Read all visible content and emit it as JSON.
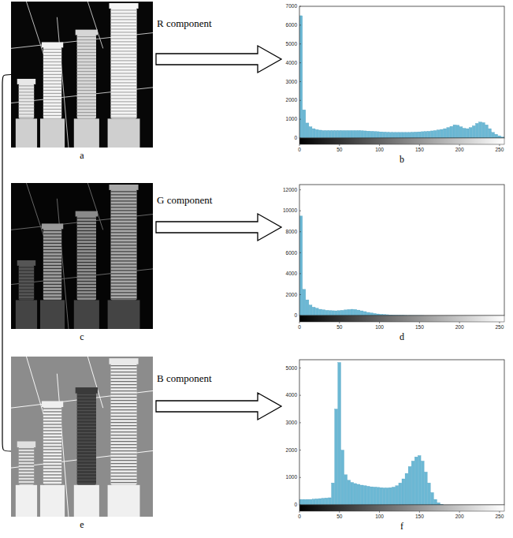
{
  "chart_data": [
    {
      "type": "histogram",
      "title": "R component",
      "annotations": [
        "b"
      ],
      "color": "#6cb8d4",
      "bins": [
        0,
        4,
        8,
        12,
        16,
        20,
        24,
        28,
        32,
        36,
        40,
        44,
        48,
        52,
        56,
        60,
        64,
        68,
        72,
        76,
        80,
        84,
        88,
        92,
        96,
        100,
        104,
        108,
        112,
        116,
        120,
        124,
        128,
        132,
        136,
        140,
        144,
        148,
        152,
        156,
        160,
        164,
        168,
        172,
        176,
        180,
        184,
        188,
        192,
        196,
        200,
        204,
        208,
        212,
        216,
        220,
        224,
        228,
        232,
        236,
        240,
        244,
        248,
        252,
        256
      ],
      "values": [
        6500,
        1500,
        800,
        600,
        500,
        450,
        420,
        400,
        400,
        400,
        400,
        400,
        400,
        400,
        400,
        400,
        400,
        400,
        400,
        390,
        380,
        370,
        360,
        350,
        340,
        330,
        320,
        310,
        300,
        300,
        300,
        300,
        300,
        300,
        300,
        310,
        320,
        330,
        340,
        350,
        360,
        380,
        400,
        430,
        460,
        500,
        560,
        620,
        700,
        680,
        600,
        520,
        500,
        560,
        650,
        780,
        850,
        820,
        700,
        500,
        300,
        200,
        120,
        60
      ],
      "xlim": [
        0,
        256
      ],
      "xticks": [
        0,
        50,
        100,
        150,
        200,
        250
      ],
      "ylim": [
        0,
        7000
      ],
      "yticks": [
        0,
        1000,
        2000,
        3000,
        4000,
        5000,
        6000,
        7000
      ]
    },
    {
      "type": "histogram",
      "title": "G component",
      "annotations": [
        "d"
      ],
      "color": "#6cb8d4",
      "bins": [
        0,
        4,
        8,
        12,
        16,
        20,
        24,
        28,
        32,
        36,
        40,
        44,
        48,
        52,
        56,
        60,
        64,
        68,
        72,
        76,
        80,
        84,
        88,
        92,
        96,
        100,
        104,
        108,
        112,
        116,
        120,
        124,
        128,
        132,
        136,
        140,
        144,
        148,
        152,
        156,
        160,
        164,
        168,
        172,
        176,
        180,
        184,
        188,
        192,
        196,
        200,
        204,
        208,
        212,
        216,
        220,
        224,
        228,
        232,
        236,
        240,
        244,
        248,
        252,
        256
      ],
      "values": [
        9500,
        2500,
        1500,
        1000,
        800,
        700,
        600,
        550,
        500,
        480,
        460,
        450,
        470,
        500,
        540,
        580,
        600,
        580,
        520,
        450,
        380,
        300,
        250,
        200,
        150,
        120,
        100,
        80,
        60,
        40,
        30,
        20,
        15,
        10,
        8,
        5,
        3,
        2,
        1,
        0,
        0,
        0,
        0,
        0,
        0,
        0,
        0,
        0,
        0,
        0,
        0,
        0,
        0,
        0,
        0,
        0,
        0,
        0,
        0,
        0,
        0,
        0,
        0,
        0
      ],
      "xlim": [
        0,
        256
      ],
      "xticks": [
        0,
        50,
        100,
        150,
        200,
        250
      ],
      "ylim": [
        0,
        12500
      ],
      "yticks": [
        0,
        2000,
        4000,
        6000,
        8000,
        10000,
        12000
      ]
    },
    {
      "type": "histogram",
      "title": "B component",
      "annotations": [
        "f"
      ],
      "color": "#6cb8d4",
      "bins": [
        0,
        4,
        8,
        12,
        16,
        20,
        24,
        28,
        32,
        36,
        40,
        44,
        48,
        52,
        56,
        60,
        64,
        68,
        72,
        76,
        80,
        84,
        88,
        92,
        96,
        100,
        104,
        108,
        112,
        116,
        120,
        124,
        128,
        132,
        136,
        140,
        144,
        148,
        152,
        156,
        160,
        164,
        168,
        172,
        176,
        180,
        184,
        188,
        192,
        196,
        200,
        204,
        208,
        212,
        216,
        220,
        224,
        228,
        232,
        236,
        240,
        244,
        248,
        252,
        256
      ],
      "values": [
        200,
        200,
        200,
        200,
        210,
        220,
        230,
        240,
        250,
        260,
        800,
        3500,
        5200,
        2000,
        1100,
        900,
        820,
        780,
        750,
        720,
        700,
        680,
        660,
        650,
        640,
        630,
        620,
        620,
        630,
        650,
        700,
        800,
        950,
        1150,
        1400,
        1600,
        1750,
        1800,
        1600,
        1200,
        800,
        450,
        200,
        80,
        20,
        0,
        0,
        0,
        0,
        0,
        0,
        0,
        0,
        0,
        0,
        0,
        0,
        0,
        0,
        0,
        0,
        0,
        0,
        0
      ],
      "xlim": [
        0,
        256
      ],
      "xticks": [
        0,
        50,
        100,
        150,
        200,
        250
      ],
      "ylim": [
        0,
        5300
      ],
      "yticks": [
        0,
        1000,
        2000,
        3000,
        4000,
        5000
      ]
    }
  ],
  "images": [
    {
      "label": "a"
    },
    {
      "label": "c"
    },
    {
      "label": "e"
    }
  ]
}
